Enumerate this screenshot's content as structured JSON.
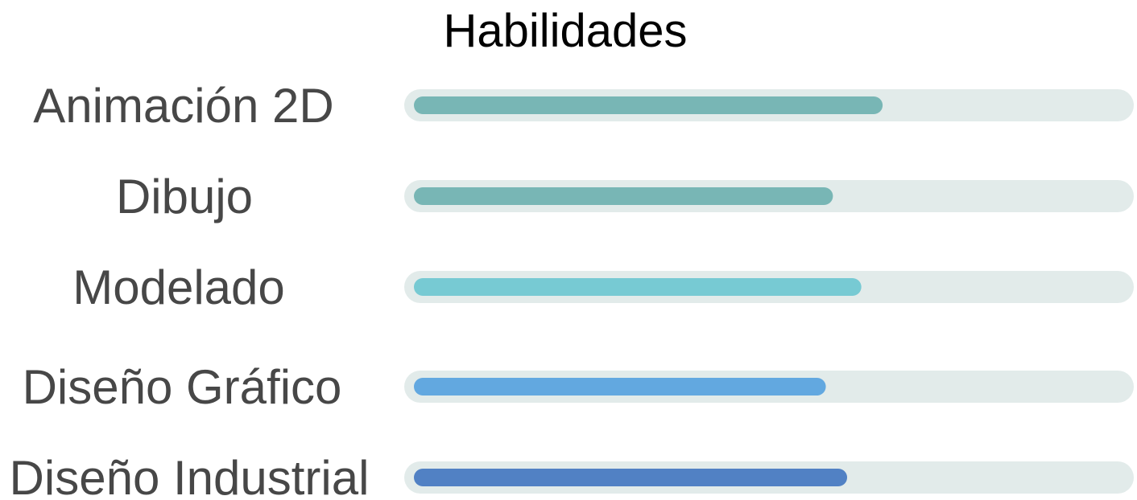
{
  "chart_data": {
    "type": "bar",
    "orientation": "horizontal",
    "title": "Habilidades",
    "categories": [
      "Animación 2D",
      "Dibujo",
      "Modelado",
      "Diseño Gráfico",
      "Diseño Industrial"
    ],
    "values": [
      66,
      59,
      63,
      58,
      61
    ],
    "value_unit": "percent",
    "xlim": [
      0,
      100
    ],
    "track_color": "#E2EBEA",
    "bar_colors": [
      "#78B6B5",
      "#78B6B5",
      "#77CAD3",
      "#62A8E0",
      "#5181C4"
    ],
    "grid": false,
    "legend": "none"
  }
}
